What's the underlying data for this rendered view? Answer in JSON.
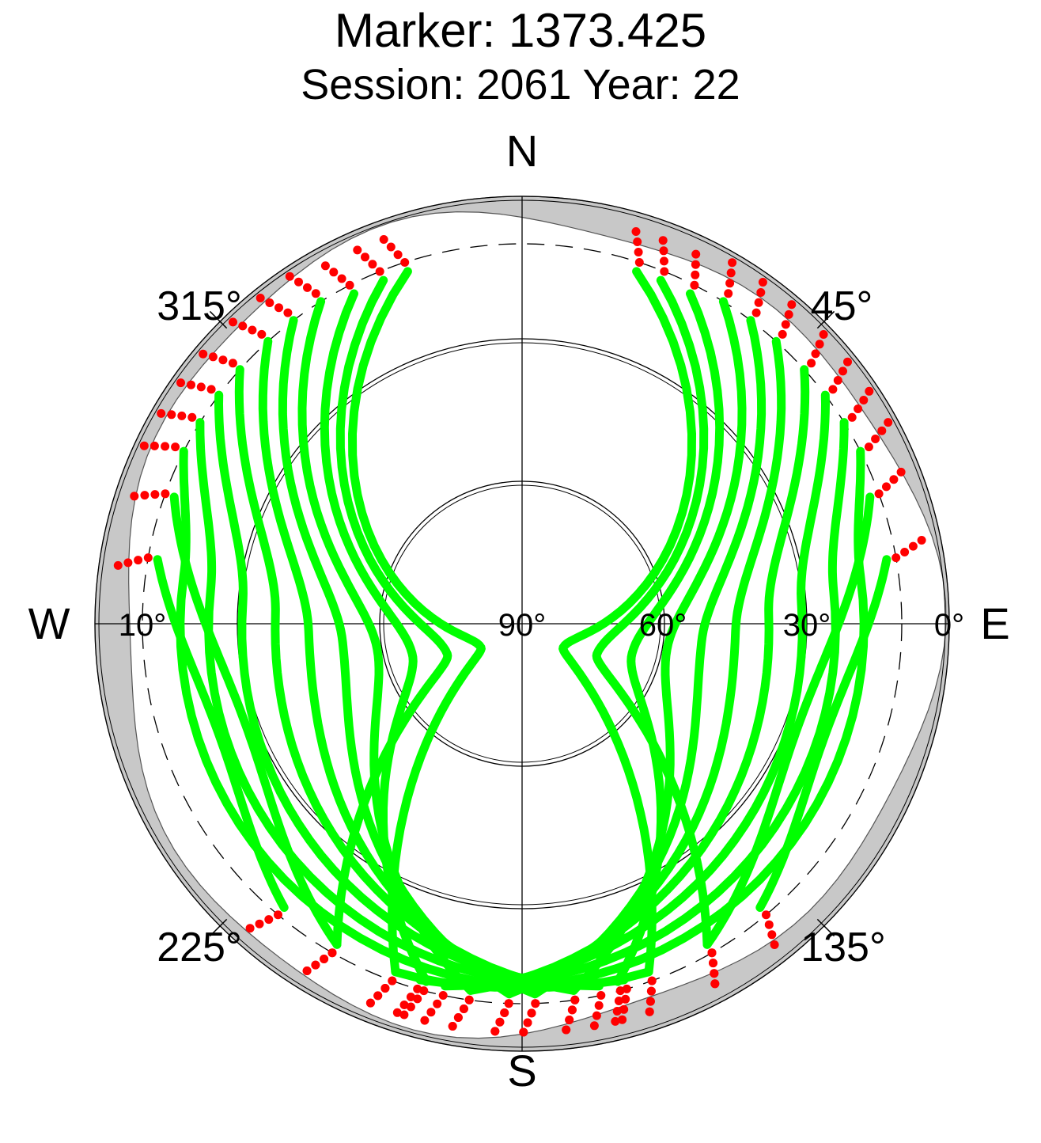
{
  "title": "Marker: 1373.425",
  "subtitle": "Session: 2061 Year: 22",
  "compass": {
    "north": "N",
    "south": "S",
    "east": "E",
    "west": "W"
  },
  "azimuth_labels": [
    "45°",
    "135°",
    "225°",
    "315°"
  ],
  "elevation_labels": [
    "0°",
    "10°",
    "30°",
    "60°",
    "90°"
  ],
  "colors": {
    "track": "#00ff00",
    "masked": "#ff0000",
    "horizon_mask": "#c8c8c8",
    "grid": "#000000"
  },
  "chart_data": {
    "type": "scatter",
    "projection": "polar sky plot (azimuth clockwise from North, elevation 90° at centre, 0° at rim)",
    "title": "Marker: 1373.425",
    "subtitle": "Session: 2061 Year: 22",
    "elevation_rings_deg": [
      0,
      10,
      30,
      60
    ],
    "elevation_cutoff_deg": 10,
    "azimuth_ticks_deg": [
      0,
      45,
      90,
      135,
      180,
      225,
      270,
      315
    ],
    "radial_labels_deg": [
      0,
      10,
      30,
      60,
      90
    ],
    "series": [
      {
        "color": "green",
        "description": "satellite tracks above mask",
        "arcs": [
          {
            "az": [
              18,
              160
            ],
            "el": [
              12,
              12
            ],
            "peak_el": 80,
            "peak_az": 120
          },
          {
            "az": [
              22,
              150
            ],
            "el": [
              12,
              12
            ],
            "peak_el": 73,
            "peak_az": 112
          },
          {
            "az": [
              27,
              165
            ],
            "el": [
              12,
              12
            ],
            "peak_el": 66,
            "peak_az": 105
          },
          {
            "az": [
              32,
              172
            ],
            "el": [
              10,
              12
            ],
            "peak_el": 59,
            "peak_az": 100
          },
          {
            "az": [
              37,
              178
            ],
            "el": [
              10,
              12
            ],
            "peak_el": 52,
            "peak_az": 96
          },
          {
            "az": [
              42,
              182
            ],
            "el": [
              10,
              12
            ],
            "peak_el": 45,
            "peak_az": 92
          },
          {
            "az": [
              48,
              188
            ],
            "el": [
              10,
              12
            ],
            "peak_el": 38,
            "peak_az": 88
          },
          {
            "az": [
              53,
              192
            ],
            "el": [
              10,
              12
            ],
            "peak_el": 31,
            "peak_az": 86
          },
          {
            "az": [
              58,
              196
            ],
            "el": [
              10,
              12
            ],
            "peak_el": 24,
            "peak_az": 84
          },
          {
            "az": [
              63,
              200
            ],
            "el": [
              10,
              12
            ],
            "peak_el": 18,
            "peak_az": 82
          },
          {
            "az": [
              342,
              200
            ],
            "el": [
              12,
              12
            ],
            "peak_el": 80,
            "peak_az": 240
          },
          {
            "az": [
              338,
              210
            ],
            "el": [
              12,
              12
            ],
            "peak_el": 73,
            "peak_az": 248
          },
          {
            "az": [
              333,
              195
            ],
            "el": [
              12,
              12
            ],
            "peak_el": 66,
            "peak_az": 255
          },
          {
            "az": [
              328,
              188
            ],
            "el": [
              10,
              12
            ],
            "peak_el": 59,
            "peak_az": 260
          },
          {
            "az": [
              323,
              182
            ],
            "el": [
              10,
              12
            ],
            "peak_el": 52,
            "peak_az": 264
          },
          {
            "az": [
              318,
              178
            ],
            "el": [
              10,
              12
            ],
            "peak_el": 45,
            "peak_az": 268
          },
          {
            "az": [
              312,
              172
            ],
            "el": [
              10,
              12
            ],
            "peak_el": 38,
            "peak_az": 272
          },
          {
            "az": [
              307,
              168
            ],
            "el": [
              10,
              12
            ],
            "peak_el": 31,
            "peak_az": 274
          },
          {
            "az": [
              302,
              164
            ],
            "el": [
              10,
              12
            ],
            "peak_el": 24,
            "peak_az": 276
          },
          {
            "az": [
              297,
              160
            ],
            "el": [
              10,
              12
            ],
            "peak_el": 18,
            "peak_az": 278
          },
          {
            "az": [
              70,
              150
            ],
            "el": [
              12,
              12
            ],
            "peak_el": 28,
            "peak_az": 110
          },
          {
            "az": [
              290,
              210
            ],
            "el": [
              12,
              12
            ],
            "peak_el": 28,
            "peak_az": 250
          },
          {
            "az": [
              80,
              140
            ],
            "el": [
              12,
              12
            ],
            "peak_el": 22,
            "peak_az": 110
          },
          {
            "az": [
              280,
              220
            ],
            "el": [
              12,
              12
            ],
            "peak_el": 22,
            "peak_az": 250
          }
        ]
      },
      {
        "color": "red",
        "description": "observations below elevation mask",
        "el_range": [
          0,
          12
        ]
      }
    ]
  }
}
